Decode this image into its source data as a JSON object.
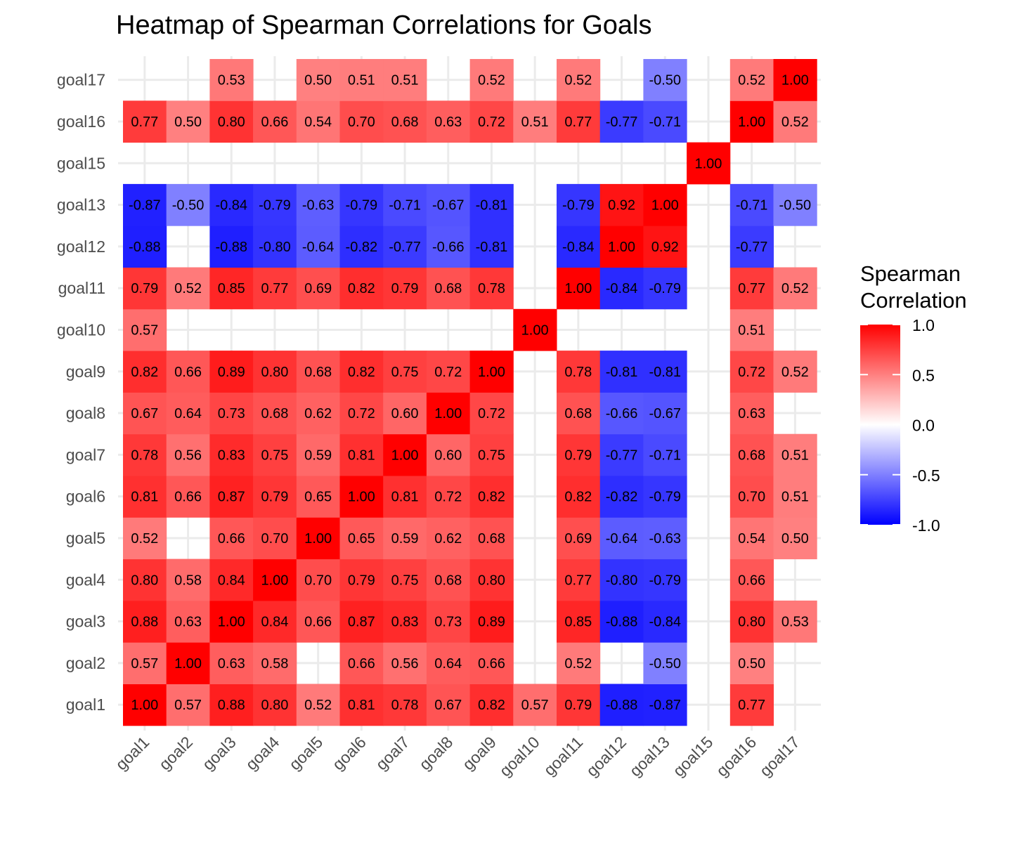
{
  "chart_data": {
    "type": "heatmap",
    "title": "Heatmap of Spearman Correlations for Goals",
    "xlabel": "",
    "ylabel": "",
    "x_categories": [
      "goal1",
      "goal2",
      "goal3",
      "goal4",
      "goal5",
      "goal6",
      "goal7",
      "goal8",
      "goal9",
      "goal10",
      "goal11",
      "goal12",
      "goal13",
      "goal15",
      "goal16",
      "goal17"
    ],
    "y_categories": [
      "goal1",
      "goal2",
      "goal3",
      "goal4",
      "goal5",
      "goal6",
      "goal7",
      "goal8",
      "goal9",
      "goal10",
      "goal11",
      "goal12",
      "goal13",
      "goal15",
      "goal16",
      "goal17"
    ],
    "matrix": [
      [
        1.0,
        0.57,
        0.88,
        0.8,
        0.52,
        0.81,
        0.78,
        0.67,
        0.82,
        0.57,
        0.79,
        -0.88,
        -0.87,
        null,
        0.77,
        null
      ],
      [
        0.57,
        1.0,
        0.63,
        0.58,
        null,
        0.66,
        0.56,
        0.64,
        0.66,
        null,
        0.52,
        null,
        -0.5,
        null,
        0.5,
        null
      ],
      [
        0.88,
        0.63,
        1.0,
        0.84,
        0.66,
        0.87,
        0.83,
        0.73,
        0.89,
        null,
        0.85,
        -0.88,
        -0.84,
        null,
        0.8,
        0.53
      ],
      [
        0.8,
        0.58,
        0.84,
        1.0,
        0.7,
        0.79,
        0.75,
        0.68,
        0.8,
        null,
        0.77,
        -0.8,
        -0.79,
        null,
        0.66,
        null
      ],
      [
        0.52,
        null,
        0.66,
        0.7,
        1.0,
        0.65,
        0.59,
        0.62,
        0.68,
        null,
        0.69,
        -0.64,
        -0.63,
        null,
        0.54,
        0.5
      ],
      [
        0.81,
        0.66,
        0.87,
        0.79,
        0.65,
        1.0,
        0.81,
        0.72,
        0.82,
        null,
        0.82,
        -0.82,
        -0.79,
        null,
        0.7,
        0.51
      ],
      [
        0.78,
        0.56,
        0.83,
        0.75,
        0.59,
        0.81,
        1.0,
        0.6,
        0.75,
        null,
        0.79,
        -0.77,
        -0.71,
        null,
        0.68,
        0.51
      ],
      [
        0.67,
        0.64,
        0.73,
        0.68,
        0.62,
        0.72,
        0.6,
        1.0,
        0.72,
        null,
        0.68,
        -0.66,
        -0.67,
        null,
        0.63,
        null
      ],
      [
        0.82,
        0.66,
        0.89,
        0.8,
        0.68,
        0.82,
        0.75,
        0.72,
        1.0,
        null,
        0.78,
        -0.81,
        -0.81,
        null,
        0.72,
        0.52
      ],
      [
        0.57,
        null,
        null,
        null,
        null,
        null,
        null,
        null,
        null,
        1.0,
        null,
        null,
        null,
        null,
        0.51,
        null
      ],
      [
        0.79,
        0.52,
        0.85,
        0.77,
        0.69,
        0.82,
        0.79,
        0.68,
        0.78,
        null,
        1.0,
        -0.84,
        -0.79,
        null,
        0.77,
        0.52
      ],
      [
        -0.88,
        null,
        -0.88,
        -0.8,
        -0.64,
        -0.82,
        -0.77,
        -0.66,
        -0.81,
        null,
        -0.84,
        1.0,
        0.92,
        null,
        -0.77,
        null
      ],
      [
        -0.87,
        -0.5,
        -0.84,
        -0.79,
        -0.63,
        -0.79,
        -0.71,
        -0.67,
        -0.81,
        null,
        -0.79,
        0.92,
        1.0,
        null,
        -0.71,
        -0.5
      ],
      [
        null,
        null,
        null,
        null,
        null,
        null,
        null,
        null,
        null,
        null,
        null,
        null,
        null,
        1.0,
        null,
        null
      ],
      [
        0.77,
        0.5,
        0.8,
        0.66,
        0.54,
        0.7,
        0.68,
        0.63,
        0.72,
        0.51,
        0.77,
        -0.77,
        -0.71,
        null,
        1.0,
        0.52
      ],
      [
        null,
        null,
        0.53,
        null,
        0.5,
        0.51,
        0.51,
        null,
        0.52,
        null,
        0.52,
        null,
        -0.5,
        null,
        0.52,
        1.0
      ]
    ],
    "value_range": [
      -1,
      1
    ],
    "grid": true,
    "legend": {
      "title_lines": [
        "Spearman",
        "Correlation"
      ],
      "ticks": [
        "1.0",
        "0.5",
        "0.0",
        "-0.5",
        "-1.0"
      ],
      "tick_values": [
        1.0,
        0.5,
        0.0,
        -0.5,
        -1.0
      ],
      "placement": "right"
    },
    "colors": {
      "low": "#0000ff",
      "mid": "#ffffff",
      "high": "#ff0000",
      "grid": "#ebebeb"
    }
  }
}
